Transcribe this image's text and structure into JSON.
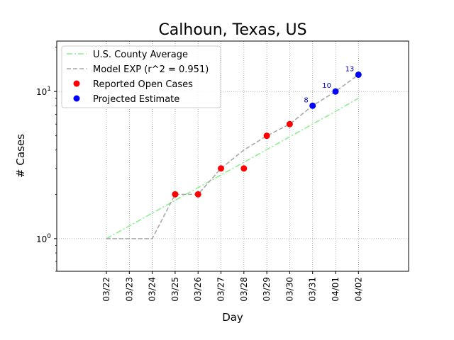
{
  "chart_data": {
    "type": "line",
    "title": "Calhoun, Texas, US",
    "xlabel": "Day",
    "ylabel": "# Cases",
    "yscale": "log",
    "ylim": [
      0.6,
      22
    ],
    "grid": true,
    "legend_position": "top-left",
    "categories": [
      "03/22",
      "03/23",
      "03/24",
      "03/25",
      "03/26",
      "03/27",
      "03/28",
      "03/29",
      "03/30",
      "03/31",
      "04/01",
      "04/02"
    ],
    "y_ticks": [
      {
        "value": 1,
        "label": "10",
        "exp": "0"
      },
      {
        "value": 10,
        "label": "10",
        "exp": "1"
      }
    ],
    "series": [
      {
        "name": "U.S. County Average",
        "style": "dashdot",
        "color": "#90ee90",
        "x": [
          "03/22",
          "03/23",
          "03/24",
          "03/25",
          "03/26",
          "03/27",
          "03/28",
          "03/29",
          "03/30",
          "03/31",
          "04/01",
          "04/02"
        ],
        "values": [
          1.0,
          1.22,
          1.49,
          1.82,
          2.22,
          2.71,
          3.3,
          4.03,
          4.92,
          6.0,
          7.32,
          9.0
        ]
      },
      {
        "name": "Model EXP (r^2 = 0.951)",
        "style": "dashed",
        "color": "#a9a9a9",
        "x": [
          "03/22",
          "03/23",
          "03/24",
          "03/25",
          "03/26",
          "03/27",
          "03/28",
          "03/29",
          "03/30",
          "03/31",
          "04/01",
          "04/02"
        ],
        "values": [
          1,
          1,
          1,
          2,
          2,
          3,
          4,
          5,
          6,
          8,
          10,
          13
        ]
      },
      {
        "name": "Reported Open Cases",
        "style": "marker",
        "color": "#ff0000",
        "x": [
          "03/25",
          "03/26",
          "03/27",
          "03/28",
          "03/29",
          "03/30"
        ],
        "values": [
          2,
          2,
          3,
          3,
          5,
          6
        ]
      },
      {
        "name": "Projected Estimate",
        "style": "marker",
        "color": "#0000ff",
        "x": [
          "03/31",
          "04/01",
          "04/02"
        ],
        "values": [
          8,
          10,
          13
        ],
        "labels": [
          "8",
          "10",
          "13"
        ]
      }
    ]
  }
}
